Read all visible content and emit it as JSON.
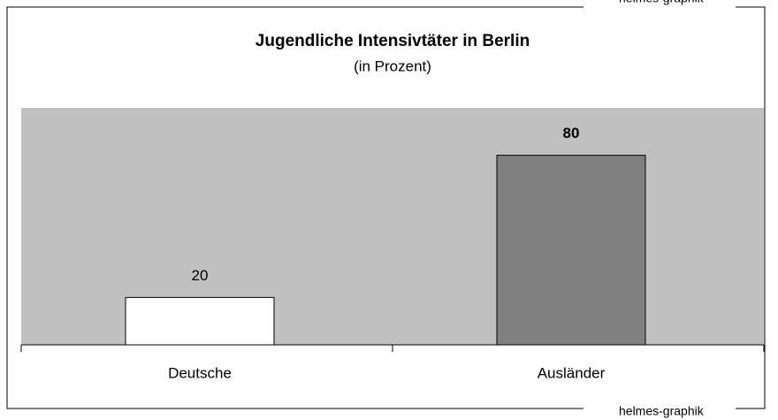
{
  "chart_data": {
    "type": "bar",
    "title": "Jugendliche Intensivtäter in Berlin",
    "subtitle": "(in Prozent)",
    "credit": "helmes-graphik",
    "categories": [
      "Deutsche",
      "Ausländer"
    ],
    "values": [
      20,
      80
    ],
    "colors": [
      "#ffffff",
      "#808080"
    ],
    "plot_background": "#c0c0c0",
    "ylim": [
      0,
      100
    ]
  }
}
